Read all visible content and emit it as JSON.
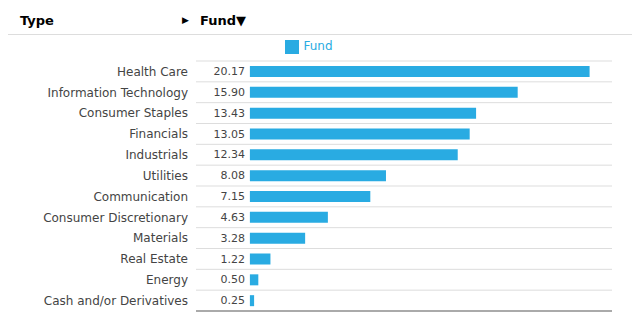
{
  "chart_data": {
    "type": "bar",
    "orientation": "horizontal",
    "categories": [
      "Health Care",
      "Information Technology",
      "Consumer Staples",
      "Financials",
      "Industrials",
      "Utilities",
      "Communication",
      "Consumer Discretionary",
      "Materials",
      "Real Estate",
      "Energy",
      "Cash and/or Derivatives"
    ],
    "series": [
      {
        "name": "Fund",
        "color": "#29ABE2",
        "values": [
          20.17,
          15.9,
          13.43,
          13.05,
          12.34,
          8.08,
          7.15,
          4.63,
          3.28,
          1.22,
          0.5,
          0.25
        ],
        "value_labels": [
          "20.17",
          "15.90",
          "13.43",
          "13.05",
          "12.34",
          "8.08",
          "7.15",
          "4.63",
          "3.28",
          "1.22",
          "0.50",
          "0.25"
        ]
      }
    ],
    "data_labels": true,
    "xlim": [
      -3.2,
      21.5
    ],
    "tick_labels": "y",
    "ylabel": "Type",
    "xlabel": "Fund▼",
    "annotations": [
      "▶"
    ],
    "grid": true,
    "legend": "top"
  }
}
